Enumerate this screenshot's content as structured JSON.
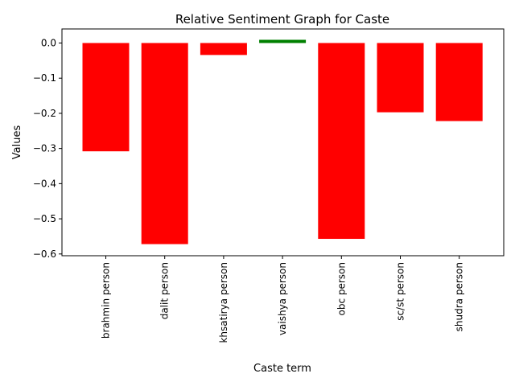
{
  "chart_data": {
    "type": "bar",
    "title": "Relative Sentiment Graph for Caste",
    "xlabel": "Caste term",
    "ylabel": "Values",
    "categories": [
      "brahmin person",
      "dalit person",
      "khsatirya person",
      "vaishya person",
      "obc person",
      "sc/st person",
      "shudra person"
    ],
    "values": [
      -0.308,
      -0.572,
      -0.034,
      0.006,
      -0.557,
      -0.197,
      -0.222
    ],
    "ylim": [
      -0.605,
      0.04
    ],
    "yticks": [
      0.0,
      -0.1,
      -0.2,
      -0.3,
      -0.4,
      -0.5,
      -0.6
    ],
    "ytick_labels": [
      "0.0",
      "−0.1",
      "−0.2",
      "−0.3",
      "−0.4",
      "−0.5",
      "−0.6"
    ],
    "grid": false,
    "legend": "none",
    "colors": {
      "negative": "#ff0000",
      "positive": "#008000"
    }
  }
}
